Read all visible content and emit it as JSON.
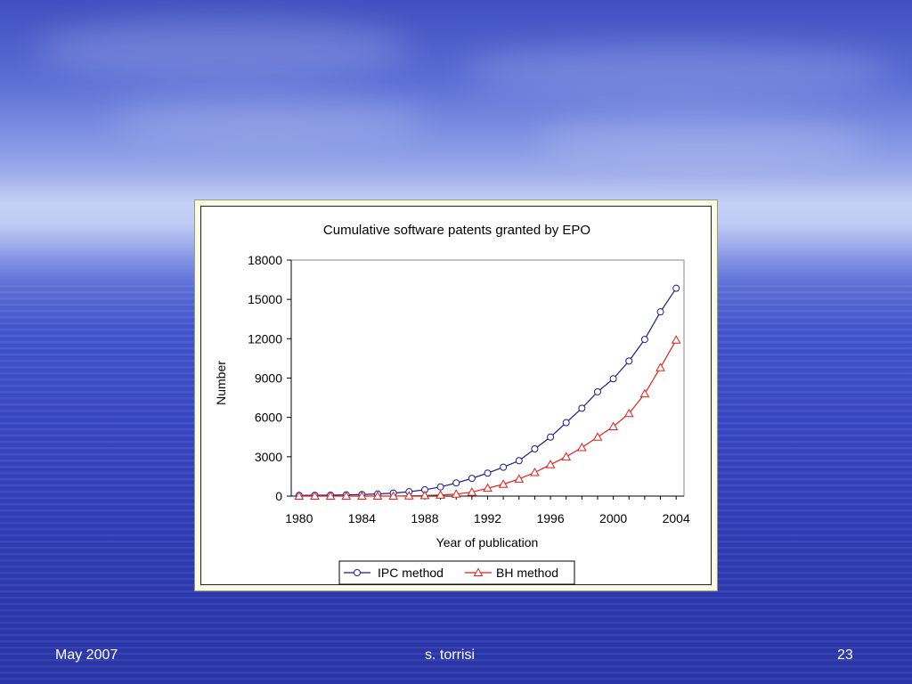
{
  "slide": {
    "footer_left": "May 2007",
    "footer_center": "s. torrisi",
    "footer_right": "23"
  },
  "colors": {
    "ipc": "#1a1a8c",
    "bh": "#e0201a",
    "axis": "#000000"
  },
  "chart_data": {
    "type": "line",
    "title": "Cumulative software patents granted by EPO",
    "xlabel": "Year of publication",
    "ylabel": "Number",
    "xlim": [
      1980,
      2004
    ],
    "ylim": [
      0,
      18000
    ],
    "xticks": [
      1980,
      1984,
      1988,
      1992,
      1996,
      2000,
      2004
    ],
    "yticks": [
      0,
      3000,
      6000,
      9000,
      12000,
      15000,
      18000
    ],
    "grid": false,
    "legend": "bottom",
    "x": [
      1980,
      1981,
      1982,
      1983,
      1984,
      1985,
      1986,
      1987,
      1988,
      1989,
      1990,
      1991,
      1992,
      1993,
      1994,
      1995,
      1996,
      1997,
      1998,
      1999,
      2000,
      2001,
      2002,
      2003,
      2004
    ],
    "series": [
      {
        "name": "IPC method",
        "marker": "circle",
        "values": [
          50,
          60,
          70,
          90,
          120,
          160,
          230,
          330,
          480,
          700,
          1000,
          1350,
          1750,
          2200,
          2700,
          3600,
          4500,
          5600,
          6700,
          7950,
          8950,
          10300,
          11950,
          14050,
          15850
        ]
      },
      {
        "name": "BH method",
        "marker": "triangle",
        "values": [
          0,
          0,
          0,
          0,
          0,
          0,
          0,
          20,
          40,
          80,
          150,
          300,
          600,
          900,
          1300,
          1800,
          2400,
          3000,
          3700,
          4500,
          5300,
          6300,
          7800,
          9800,
          11900
        ]
      }
    ]
  }
}
